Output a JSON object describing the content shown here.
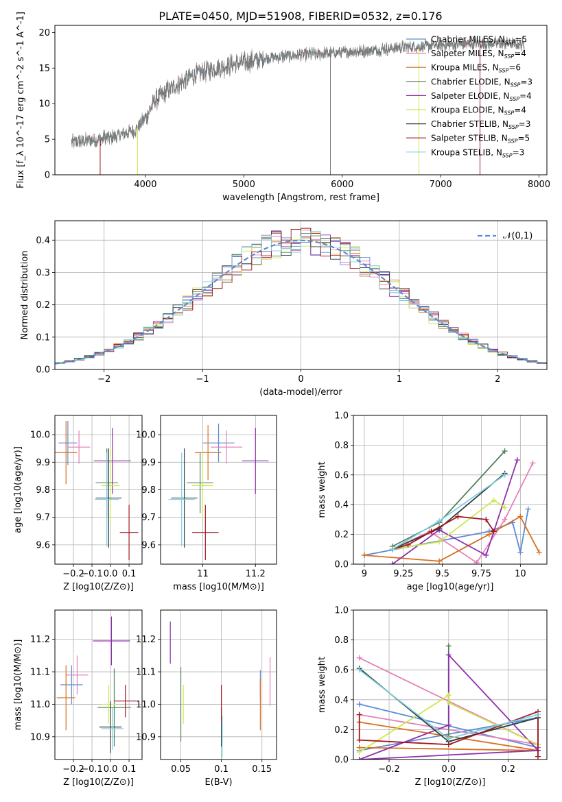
{
  "figure_title": "PLATE=0450, MJD=51908, FIBERID=0532, z=0.176",
  "colors": {
    "chabrier_miles": "#5b8ad6",
    "salpeter_miles": "#e67fb9",
    "kroupa_miles": "#d96f1f",
    "chabrier_elodie": "#4f7f5a",
    "salpeter_elodie": "#8e2fad",
    "kroupa_elodie": "#cde84e",
    "chabrier_stelib": "#2f3f3f",
    "salpeter_stelib": "#a3161c",
    "kroupa_stelib": "#7cd0df",
    "normal_curve": "#5b8ad6",
    "grid": "#b0b0b0"
  },
  "chart_data": [
    {
      "id": "spectrum",
      "type": "line",
      "xlabel": "wavelength [Angstrom, rest frame]",
      "ylabel": "Flux [f_λ 10^-17 erg cm^-2 s^-1 A^-1]",
      "xlim": [
        3080,
        8080
      ],
      "ylim": [
        0,
        21
      ],
      "xticks": [
        4000,
        5000,
        6000,
        7000,
        8000
      ],
      "yticks": [
        0,
        5,
        10,
        15,
        20
      ],
      "grid": false,
      "legend_position": "top-right",
      "series": [
        {
          "name": "Chabrier MILES, N_SSP=5",
          "key": "chabrier_miles"
        },
        {
          "name": "Salpeter MILES, N_SSP=4",
          "key": "salpeter_miles"
        },
        {
          "name": "Kroupa MILES, N_SSP=6",
          "key": "kroupa_miles"
        },
        {
          "name": "Chabrier ELODIE, N_SSP=3",
          "key": "chabrier_elodie"
        },
        {
          "name": "Salpeter ELODIE, N_SSP=4",
          "key": "salpeter_elodie"
        },
        {
          "name": "Kroupa ELODIE, N_SSP=4",
          "key": "kroupa_elodie"
        },
        {
          "name": "Chabrier STELIB, N_SSP=3",
          "key": "chabrier_stelib"
        },
        {
          "name": "Salpeter STELIB, N_SSP=5",
          "key": "salpeter_stelib"
        },
        {
          "name": "Kroupa STELIB, N_SSP=3",
          "key": "kroupa_stelib"
        }
      ],
      "continuum": {
        "x": [
          3250,
          3500,
          3700,
          3900,
          4000,
          4100,
          4300,
          4500,
          4700,
          5000,
          5300,
          5600,
          6000,
          6300,
          6600,
          7000,
          7300,
          7600,
          7850
        ],
        "y": [
          4.6,
          4.9,
          5.4,
          6.3,
          8.0,
          10.5,
          12.5,
          14.0,
          15.0,
          15.8,
          16.5,
          16.9,
          17.2,
          17.5,
          17.9,
          18.2,
          18.4,
          18.5,
          18.3
        ]
      }
    },
    {
      "id": "residuals",
      "type": "line",
      "xlabel": "(data-model)/error",
      "ylabel": "Normed distribution",
      "xlim": [
        -2.5,
        2.5
      ],
      "ylim": [
        0,
        0.46
      ],
      "xticks": [
        -2,
        -1,
        0,
        1,
        2
      ],
      "yticks": [
        0.0,
        0.1,
        0.2,
        0.3,
        0.4
      ],
      "grid": true,
      "legend_position": "top-right",
      "legend": "𝒩(0,1)",
      "bin_width": 0.1
    },
    {
      "id": "age_vs_Z",
      "type": "scatter",
      "xlabel": "Z [log10(Z/Z⊙)]",
      "ylabel": "age [log10(age/yr)]",
      "xlim": [
        -0.3,
        0.17
      ],
      "ylim": [
        9.53,
        10.07
      ],
      "xticks": [
        -0.2,
        -0.1,
        0.0,
        0.1
      ],
      "xticklabels": [
        "−0.2",
        "−0.1",
        "0.0",
        "0.1"
      ],
      "yticks": [
        9.6,
        9.7,
        9.8,
        9.9,
        10.0
      ],
      "grid": true,
      "points": [
        {
          "key": "chabrier_miles",
          "x": -0.23,
          "xerr": 0.05,
          "y": 9.97,
          "yerr": 0.08
        },
        {
          "key": "salpeter_miles",
          "x": -0.17,
          "xerr": 0.06,
          "y": 9.955,
          "yerr": 0.06
        },
        {
          "key": "kroupa_miles",
          "x": -0.24,
          "xerr": 0.06,
          "y": 9.935,
          "yerr": 0.115
        },
        {
          "key": "chabrier_elodie",
          "x": -0.02,
          "xerr": 0.06,
          "y": 9.825,
          "yerr": 0.125
        },
        {
          "key": "salpeter_elodie",
          "x": 0.01,
          "xerr": 0.1,
          "y": 9.905,
          "yerr": 0.12
        },
        {
          "key": "kroupa_elodie",
          "x": 0.0,
          "xerr": 0.05,
          "y": 9.815,
          "yerr": 0.135
        },
        {
          "key": "chabrier_stelib",
          "x": -0.01,
          "xerr": 0.07,
          "y": 9.77,
          "yerr": 0.18
        },
        {
          "key": "salpeter_stelib",
          "x": 0.1,
          "xerr": 0.05,
          "y": 9.645,
          "yerr": 0.1
        },
        {
          "key": "kroupa_stelib",
          "x": -0.02,
          "xerr": 0.065,
          "y": 9.765,
          "yerr": 0.17
        }
      ]
    },
    {
      "id": "age_vs_mass",
      "type": "scatter",
      "xlabel": "mass [log10(M/M⊙)]",
      "ylabel": "",
      "xlim": [
        10.84,
        11.28
      ],
      "ylim": [
        9.53,
        10.07
      ],
      "xticks": [
        11.0,
        11.2
      ],
      "yticks": [
        9.6,
        9.7,
        9.8,
        9.9,
        10.0
      ],
      "grid": true,
      "points": [
        {
          "key": "chabrier_miles",
          "x": 11.06,
          "xerr": 0.06,
          "y": 9.97,
          "yerr": 0.07
        },
        {
          "key": "salpeter_miles",
          "x": 11.09,
          "xerr": 0.06,
          "y": 9.955,
          "yerr": 0.06
        },
        {
          "key": "kroupa_miles",
          "x": 11.02,
          "xerr": 0.05,
          "y": 9.935,
          "yerr": 0.1
        },
        {
          "key": "chabrier_elodie",
          "x": 10.99,
          "xerr": 0.05,
          "y": 9.825,
          "yerr": 0.11
        },
        {
          "key": "salpeter_elodie",
          "x": 11.2,
          "xerr": 0.05,
          "y": 9.905,
          "yerr": 0.12
        },
        {
          "key": "kroupa_elodie",
          "x": 11.0,
          "xerr": 0.04,
          "y": 9.815,
          "yerr": 0.12
        },
        {
          "key": "chabrier_stelib",
          "x": 10.93,
          "xerr": 0.05,
          "y": 9.77,
          "yerr": 0.18
        },
        {
          "key": "salpeter_stelib",
          "x": 11.01,
          "xerr": 0.05,
          "y": 9.645,
          "yerr": 0.1
        },
        {
          "key": "kroupa_stelib",
          "x": 10.92,
          "xerr": 0.05,
          "y": 9.765,
          "yerr": 0.17
        }
      ]
    },
    {
      "id": "mass_weight_vs_age",
      "type": "line",
      "xlabel": "age [log10(age/yr)]",
      "ylabel": "mass weight",
      "xlim": [
        8.93,
        10.17
      ],
      "ylim": [
        0,
        1.0
      ],
      "xticks": [
        9.0,
        9.25,
        9.5,
        9.75,
        10.0
      ],
      "yticks": [
        0.0,
        0.2,
        0.4,
        0.6,
        0.8,
        1.0
      ],
      "grid": true,
      "series": [
        {
          "key": "chabrier_miles",
          "x": [
            9.0,
            9.8,
            9.95,
            10.0,
            10.05
          ],
          "y": [
            0.06,
            0.22,
            0.28,
            0.08,
            0.37
          ]
        },
        {
          "key": "salpeter_miles",
          "x": [
            9.18,
            9.42,
            9.72,
            9.9,
            10.08
          ],
          "y": [
            0.1,
            0.22,
            0.01,
            0.3,
            0.68
          ]
        },
        {
          "key": "kroupa_miles",
          "x": [
            9.0,
            9.48,
            9.8,
            10.0,
            10.12
          ],
          "y": [
            0.06,
            0.02,
            0.2,
            0.32,
            0.08
          ]
        },
        {
          "key": "chabrier_elodie",
          "x": [
            9.18,
            9.48,
            9.9
          ],
          "y": [
            0.12,
            0.28,
            0.76
          ]
        },
        {
          "key": "salpeter_elodie",
          "x": [
            9.18,
            9.48,
            9.78,
            9.98
          ],
          "y": [
            0.0,
            0.23,
            0.06,
            0.7
          ]
        },
        {
          "key": "kroupa_elodie",
          "x": [
            9.18,
            9.48,
            9.83,
            9.9
          ],
          "y": [
            0.1,
            0.15,
            0.43,
            0.38
          ]
        },
        {
          "key": "chabrier_stelib",
          "x": [
            9.18,
            9.48,
            9.9
          ],
          "y": [
            0.1,
            0.24,
            0.61
          ]
        },
        {
          "key": "salpeter_stelib",
          "x": [
            9.18,
            9.28,
            9.43,
            9.6,
            9.78,
            9.83
          ],
          "y": [
            0.1,
            0.13,
            0.22,
            0.32,
            0.3,
            0.22
          ]
        },
        {
          "key": "kroupa_stelib",
          "x": [
            9.18,
            9.48,
            9.9
          ],
          "y": [
            0.1,
            0.29,
            0.6
          ]
        }
      ]
    },
    {
      "id": "mass_vs_Z",
      "type": "scatter",
      "xlabel": "Z [log10(Z/Z⊙)]",
      "ylabel": "mass [log10(M/M⊙)]",
      "xlim": [
        -0.3,
        0.17
      ],
      "ylim": [
        10.83,
        11.29
      ],
      "xticks": [
        -0.2,
        -0.1,
        0.0,
        0.1
      ],
      "xticklabels": [
        "−0.2",
        "−0.1",
        "0.0",
        "0.1"
      ],
      "yticks": [
        10.9,
        11.0,
        11.1,
        11.2
      ],
      "grid": true,
      "points": [
        {
          "key": "chabrier_miles",
          "x": -0.21,
          "xerr": 0.06,
          "y": 11.06,
          "yerr": 0.06
        },
        {
          "key": "salpeter_miles",
          "x": -0.18,
          "xerr": 0.06,
          "y": 11.09,
          "yerr": 0.06
        },
        {
          "key": "kroupa_miles",
          "x": -0.24,
          "xerr": 0.05,
          "y": 11.02,
          "yerr": 0.1
        },
        {
          "key": "chabrier_elodie",
          "x": 0.02,
          "xerr": 0.09,
          "y": 10.99,
          "yerr": 0.12
        },
        {
          "key": "salpeter_elodie",
          "x": 0.005,
          "xerr": 0.1,
          "y": 11.195,
          "yerr": 0.075
        },
        {
          "key": "kroupa_elodie",
          "x": -0.01,
          "xerr": 0.04,
          "y": 11.0,
          "yerr": 0.06
        },
        {
          "key": "chabrier_stelib",
          "x": 0.0,
          "xerr": 0.06,
          "y": 10.93,
          "yerr": 0.08
        },
        {
          "key": "salpeter_stelib",
          "x": 0.08,
          "xerr": 0.06,
          "y": 11.01,
          "yerr": 0.05
        },
        {
          "key": "kroupa_stelib",
          "x": 0.01,
          "xerr": 0.06,
          "y": 10.925,
          "yerr": 0.065
        }
      ]
    },
    {
      "id": "mass_vs_ebv",
      "type": "scatter",
      "xlabel": "E(B-V)",
      "ylabel": "",
      "xlim": [
        0.025,
        0.168
      ],
      "ylim": [
        10.83,
        11.29
      ],
      "xticks": [
        0.05,
        0.1,
        0.15
      ],
      "yticks": [
        10.9,
        11.0,
        11.1,
        11.2
      ],
      "grid": true,
      "points": [
        {
          "key": "chabrier_miles",
          "x": 0.148,
          "xerr": 0.0,
          "y": 11.06,
          "yerr": 0.045
        },
        {
          "key": "salpeter_miles",
          "x": 0.16,
          "xerr": 0.0,
          "y": 11.07,
          "yerr": 0.075
        },
        {
          "key": "kroupa_miles",
          "x": 0.148,
          "xerr": 0.0,
          "y": 11.0,
          "yerr": 0.08
        },
        {
          "key": "chabrier_elodie",
          "x": 0.05,
          "xerr": 0.0,
          "y": 11.0,
          "yerr": 0.115
        },
        {
          "key": "salpeter_elodie",
          "x": 0.037,
          "xerr": 0.0,
          "y": 11.19,
          "yerr": 0.065
        },
        {
          "key": "kroupa_elodie",
          "x": 0.053,
          "xerr": 0.0,
          "y": 11.0,
          "yerr": 0.06
        },
        {
          "key": "chabrier_stelib",
          "x": 0.1,
          "xerr": 0.0,
          "y": 10.93,
          "yerr": 0.06
        },
        {
          "key": "salpeter_stelib",
          "x": 0.1,
          "xerr": 0.0,
          "y": 11.0,
          "yerr": 0.06
        },
        {
          "key": "kroupa_stelib",
          "x": 0.101,
          "xerr": 0.0,
          "y": 10.9,
          "yerr": 0.065
        }
      ]
    },
    {
      "id": "mass_weight_vs_Z",
      "type": "line",
      "xlabel": "Z [log10(Z/Z⊙)]",
      "ylabel": "mass weight",
      "xlim": [
        -0.32,
        0.33
      ],
      "ylim": [
        0,
        1.0
      ],
      "xticks": [
        -0.2,
        0.0,
        0.2
      ],
      "xticklabels": [
        "−0.2",
        "0.0",
        "0.2"
      ],
      "yticks": [
        0.0,
        0.2,
        0.4,
        0.6,
        0.8,
        1.0
      ],
      "grid": true,
      "series": [
        {
          "key": "chabrier_miles",
          "x": [
            -0.3,
            0.3,
            0.3,
            -0.3
          ],
          "y": [
            0.37,
            0.08,
            0.28,
            0.06
          ]
        },
        {
          "key": "salpeter_miles",
          "x": [
            -0.3,
            0.3,
            -0.3
          ],
          "y": [
            0.68,
            0.1,
            0.3
          ]
        },
        {
          "key": "kroupa_miles",
          "x": [
            -0.3,
            0.3,
            -0.3
          ],
          "y": [
            0.08,
            0.06,
            0.25
          ]
        },
        {
          "key": "chabrier_elodie",
          "x": [
            0.0,
            0.0,
            0.3
          ],
          "y": [
            0.76,
            0.12,
            0.28
          ]
        },
        {
          "key": "salpeter_elodie",
          "x": [
            0.0,
            0.0,
            0.3,
            -0.3,
            0.0
          ],
          "y": [
            0.23,
            0.7,
            0.06,
            0.0,
            0.23
          ]
        },
        {
          "key": "kroupa_elodie",
          "x": [
            -0.3,
            0.0,
            0.0,
            0.3
          ],
          "y": [
            0.05,
            0.43,
            0.38,
            0.1
          ]
        },
        {
          "key": "chabrier_stelib",
          "x": [
            -0.3,
            0.0,
            0.3
          ],
          "y": [
            0.61,
            0.12,
            0.28
          ]
        },
        {
          "key": "salpeter_stelib",
          "x": [
            -0.3,
            -0.3,
            0.0,
            0.3,
            0.3
          ],
          "y": [
            0.3,
            0.13,
            0.1,
            0.32,
            0.02
          ]
        },
        {
          "key": "kroupa_stelib",
          "x": [
            -0.3,
            0.0,
            0.3
          ],
          "y": [
            0.6,
            0.14,
            0.3
          ]
        }
      ]
    }
  ]
}
